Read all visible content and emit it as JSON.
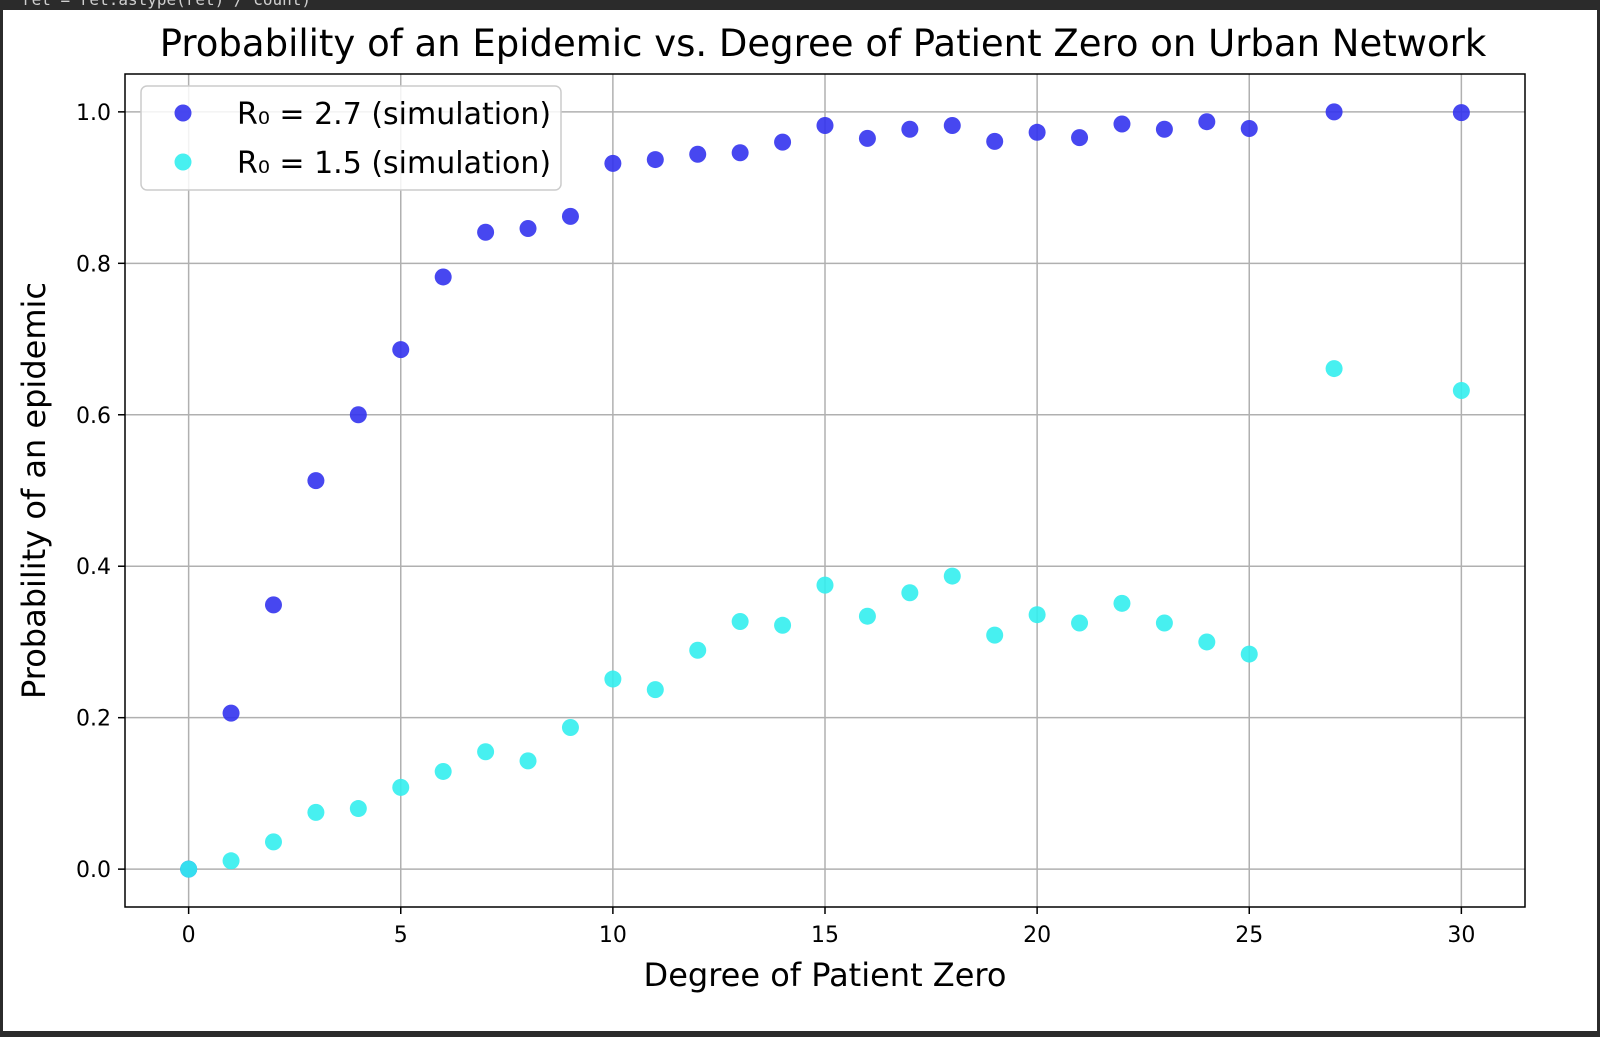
{
  "code_fragment": "ret = ret.astype(ret) / count)",
  "chart_data": {
    "type": "scatter",
    "title": "Probability of an Epidemic vs. Degree of Patient Zero on Urban Network",
    "xlabel": "Degree of Patient Zero",
    "ylabel": "Probability of an epidemic",
    "xlim": [
      -1.5,
      31.5
    ],
    "ylim": [
      -0.05,
      1.05
    ],
    "xticks": [
      0,
      5,
      10,
      15,
      20,
      25,
      30
    ],
    "yticks": [
      0.0,
      0.2,
      0.4,
      0.6,
      0.8,
      1.0
    ],
    "xtick_labels": [
      "0",
      "5",
      "10",
      "15",
      "20",
      "25",
      "30"
    ],
    "ytick_labels": [
      "0.0",
      "0.2",
      "0.4",
      "0.6",
      "0.8",
      "1.0"
    ],
    "grid": true,
    "legend_position": "top-left",
    "series": [
      {
        "name": "R₀ = 2.7 (simulation)",
        "color": "#3333ee",
        "x": [
          0,
          1,
          2,
          3,
          4,
          5,
          6,
          7,
          8,
          9,
          10,
          11,
          12,
          13,
          14,
          15,
          16,
          17,
          18,
          19,
          20,
          21,
          22,
          23,
          24,
          25,
          27,
          30
        ],
        "y": [
          0.0,
          0.206,
          0.349,
          0.513,
          0.6,
          0.686,
          0.782,
          0.841,
          0.846,
          0.862,
          0.932,
          0.937,
          0.944,
          0.946,
          0.96,
          0.982,
          0.965,
          0.977,
          0.982,
          0.961,
          0.973,
          0.966,
          0.984,
          0.977,
          0.987,
          0.978,
          1.0,
          0.999
        ]
      },
      {
        "name": "R₀ = 1.5 (simulation)",
        "color": "#33eeee",
        "x": [
          0,
          1,
          2,
          3,
          4,
          5,
          6,
          7,
          8,
          9,
          10,
          11,
          12,
          13,
          14,
          15,
          16,
          17,
          18,
          19,
          20,
          21,
          22,
          23,
          24,
          25,
          27,
          30
        ],
        "y": [
          0.0,
          0.011,
          0.036,
          0.075,
          0.08,
          0.108,
          0.129,
          0.155,
          0.143,
          0.187,
          0.251,
          0.237,
          0.289,
          0.327,
          0.322,
          0.375,
          0.334,
          0.365,
          0.387,
          0.309,
          0.336,
          0.325,
          0.351,
          0.325,
          0.3,
          0.284,
          0.661,
          0.632
        ]
      }
    ]
  }
}
